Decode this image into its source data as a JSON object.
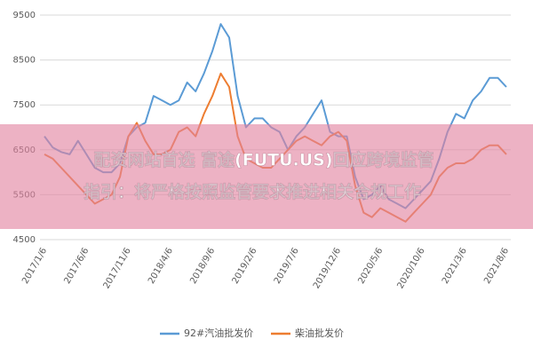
{
  "chart_data": {
    "type": "line",
    "categories": [
      "2017/1/6",
      null,
      null,
      null,
      null,
      "2017/6/6",
      null,
      null,
      null,
      null,
      "2017/11/6",
      null,
      null,
      null,
      null,
      "2018/4/6",
      null,
      null,
      null,
      null,
      "2018/9/6",
      null,
      null,
      null,
      null,
      "2019/2/6",
      null,
      null,
      null,
      null,
      "2019/7/6",
      null,
      null,
      null,
      null,
      "2019/12/6",
      null,
      null,
      null,
      null,
      "2020/5/6",
      null,
      null,
      null,
      null,
      "2020/10/6",
      null,
      null,
      null,
      null,
      "2021/3/6",
      null,
      null,
      null,
      null,
      "2021/8/6"
    ],
    "series": [
      {
        "name": "92#汽油批发价",
        "color": "#5b9bd5",
        "values": [
          6800,
          6550,
          6450,
          6400,
          6700,
          6400,
          6100,
          6000,
          6000,
          6200,
          6800,
          7000,
          7100,
          7700,
          7600,
          7500,
          7600,
          8000,
          7800,
          8200,
          8700,
          9300,
          9000,
          7700,
          7000,
          7200,
          7200,
          7000,
          6900,
          6500,
          6800,
          7000,
          7300,
          7600,
          6900,
          6800,
          6800,
          5900,
          5400,
          5500,
          5700,
          5400,
          5300,
          5200,
          5400,
          5600,
          5800,
          6300,
          6900,
          7300,
          7200,
          7600,
          7800,
          8100,
          8100,
          7900
        ]
      },
      {
        "name": "柴油批发价",
        "color": "#ed7d31",
        "values": [
          6400,
          6300,
          6100,
          5900,
          5700,
          5500,
          5300,
          5400,
          5500,
          5900,
          6800,
          7100,
          6700,
          6400,
          6400,
          6500,
          6900,
          7000,
          6800,
          7300,
          7700,
          8200,
          7900,
          6800,
          6300,
          6200,
          6100,
          6100,
          6300,
          6500,
          6700,
          6800,
          6700,
          6600,
          6800,
          6900,
          6700,
          5700,
          5100,
          5000,
          5200,
          5100,
          5000,
          4900,
          5100,
          5300,
          5500,
          5900,
          6100,
          6200,
          6200,
          6300,
          6500,
          6600,
          6600,
          6400
        ]
      }
    ],
    "ylim": [
      4500,
      9500
    ],
    "yticks": [
      4500,
      5500,
      6500,
      7500,
      8500,
      9500
    ],
    "grid": true
  },
  "banner": {
    "lines": [
      "配资网站首选 富途(FUTU.US)回应跨境监管",
      "指引：将严格按照监管要求推进相关合规工作"
    ]
  }
}
